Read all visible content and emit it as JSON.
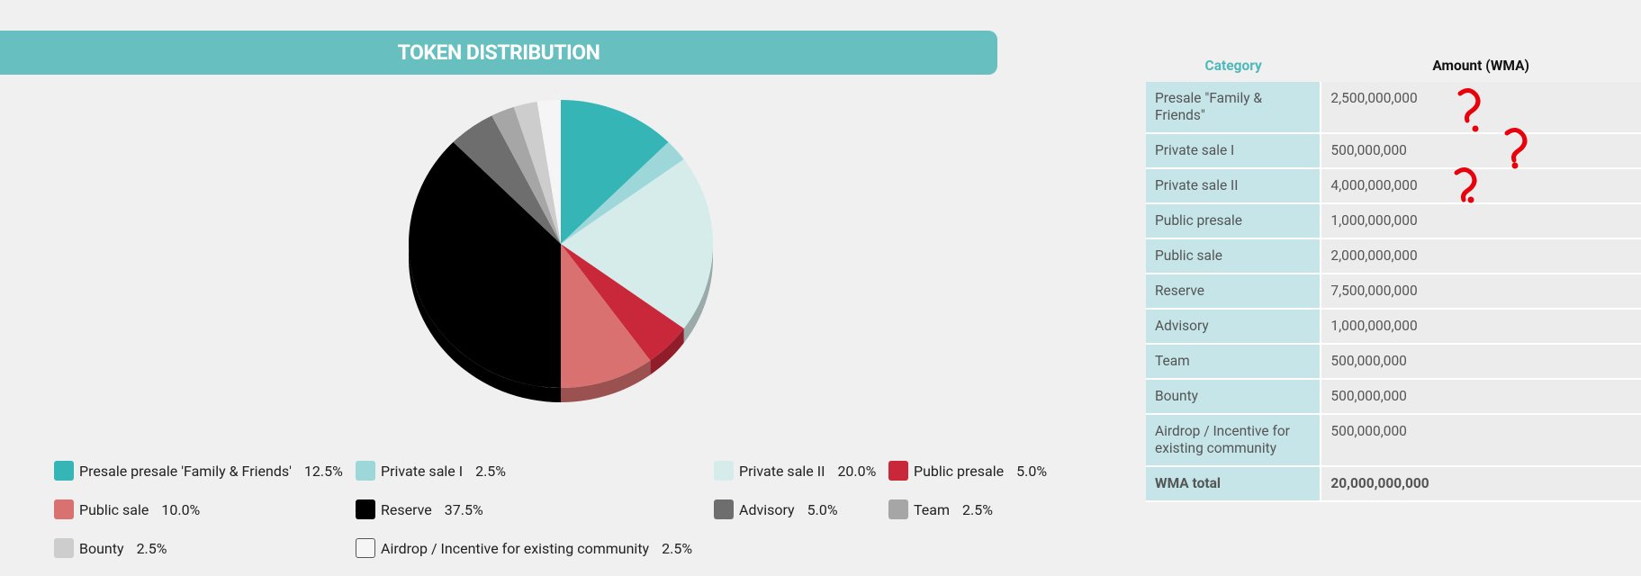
{
  "chart_data": {
    "type": "pie",
    "title": "TOKEN DISTRIBUTION",
    "categories": [
      "Presale presale 'Family & Friends'",
      "Private sale I",
      "Private sale II",
      "Public presale",
      "Public sale",
      "Reserve",
      "Advisory",
      "Team",
      "Bounty",
      "Airdrop / Incentive for existing community"
    ],
    "values": [
      12.5,
      2.5,
      20,
      5,
      10,
      37.5,
      5,
      2.5,
      2.5,
      2.5
    ],
    "value_labels": [
      "12.5%",
      "2.5%",
      "20.0%",
      "5.0%",
      "10.0%",
      "37.5%",
      "5.0%",
      "2.5%",
      "2.5%",
      "2.5%"
    ],
    "colors": [
      "#36b5b6",
      "#9dd7da",
      "#d5ecea",
      "#c9283b",
      "#d97170",
      "#000000",
      "#6e6e6e",
      "#a6a6a6",
      "#cdcdcd",
      "#f5f5f5"
    ]
  },
  "table": {
    "header": [
      "Category",
      "Amount (WMA)"
    ],
    "rows": [
      [
        "Presale \"Family & Friends\"",
        "2,500,000,000"
      ],
      [
        "Private sale I",
        "500,000,000"
      ],
      [
        "Private sale II",
        "4,000,000,000"
      ],
      [
        "Public presale",
        "1,000,000,000"
      ],
      [
        "Public sale",
        "2,000,000,000"
      ],
      [
        "Reserve",
        "7,500,000,000"
      ],
      [
        "Advisory",
        "1,000,000,000"
      ],
      [
        "Team",
        "500,000,000"
      ],
      [
        "Bounty",
        "500,000,000"
      ],
      [
        "Airdrop / Incentive for existing community",
        "500,000,000"
      ]
    ],
    "total": [
      "WMA total",
      "20,000,000,000"
    ]
  }
}
